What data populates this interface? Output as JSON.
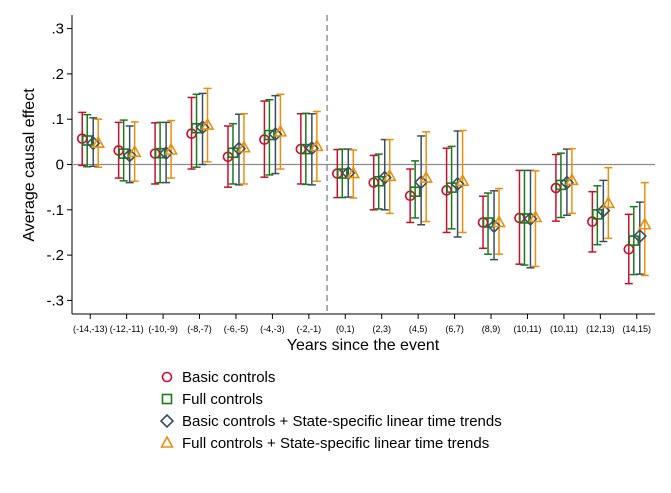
{
  "chart_data": {
    "type": "scatter",
    "subtype": "point-estimates-with-confidence-intervals",
    "xlabel": "Years since the event",
    "ylabel": "Average causal effect",
    "ylim": [
      -0.33,
      0.33
    ],
    "yticks": [
      0.3,
      0.2,
      0.1,
      0,
      -0.1,
      -0.2,
      -0.3
    ],
    "ytick_labels": [
      ".3",
      ".2",
      ".1",
      "0",
      "-.1",
      "-.2",
      "-.3"
    ],
    "categories": [
      "(-14,-13)",
      "(-12,-11)",
      "(-10,-9)",
      "(-8,-7)",
      "(-6,-5)",
      "(-4,-3)",
      "(-2,-1)",
      "(0,1)",
      "(2,3)",
      "(4,5)",
      "(6,7)",
      "(8,9)",
      "(10,11)",
      "(10,11)",
      "(12,13)",
      "(14,15)"
    ],
    "event_line": {
      "after_index": 6,
      "style": "dashed"
    },
    "zero_line": true,
    "grid": false,
    "legend_position": "bottom",
    "series": [
      {
        "name": "Basic controls",
        "marker": "circle",
        "color": "#c8102e",
        "estimates": [
          0.057,
          0.031,
          0.024,
          0.068,
          0.017,
          0.055,
          0.034,
          -0.02,
          -0.04,
          -0.069,
          -0.057,
          -0.128,
          -0.118,
          -0.052,
          -0.126,
          -0.187
        ],
        "ci_low": [
          -0.002,
          -0.03,
          -0.043,
          -0.01,
          -0.05,
          -0.028,
          -0.043,
          -0.073,
          -0.1,
          -0.128,
          -0.15,
          -0.185,
          -0.22,
          -0.125,
          -0.193,
          -0.263
        ],
        "ci_high": [
          0.115,
          0.093,
          0.092,
          0.148,
          0.085,
          0.14,
          0.112,
          0.033,
          0.02,
          -0.01,
          0.036,
          -0.07,
          -0.013,
          0.022,
          -0.06,
          -0.11
        ]
      },
      {
        "name": "Full controls",
        "marker": "square",
        "color": "#1a7a1a",
        "estimates": [
          0.053,
          0.024,
          0.025,
          0.08,
          0.026,
          0.065,
          0.034,
          -0.02,
          -0.037,
          -0.06,
          -0.051,
          -0.128,
          -0.119,
          -0.045,
          -0.11,
          -0.168
        ],
        "ci_low": [
          -0.005,
          -0.036,
          -0.04,
          -0.006,
          -0.043,
          -0.023,
          -0.044,
          -0.073,
          -0.098,
          -0.118,
          -0.142,
          -0.198,
          -0.222,
          -0.117,
          -0.177,
          -0.243
        ],
        "ci_high": [
          0.11,
          0.098,
          0.093,
          0.155,
          0.09,
          0.143,
          0.113,
          0.034,
          0.023,
          0.008,
          0.04,
          -0.063,
          -0.013,
          0.025,
          -0.047,
          -0.093
        ]
      },
      {
        "name": "Basic controls  + State-specific linear time trends",
        "marker": "diamond",
        "color": "#3a4f63",
        "estimates": [
          0.047,
          0.02,
          0.025,
          0.082,
          0.035,
          0.067,
          0.036,
          -0.019,
          -0.029,
          -0.039,
          -0.043,
          -0.136,
          -0.12,
          -0.04,
          -0.102,
          -0.158
        ],
        "ci_low": [
          -0.004,
          -0.04,
          -0.04,
          0.0,
          -0.045,
          -0.02,
          -0.045,
          -0.072,
          -0.1,
          -0.133,
          -0.16,
          -0.21,
          -0.228,
          -0.112,
          -0.17,
          -0.242
        ],
        "ci_high": [
          0.103,
          0.085,
          0.093,
          0.157,
          0.111,
          0.152,
          0.112,
          0.034,
          0.055,
          0.063,
          0.074,
          -0.058,
          -0.013,
          0.034,
          -0.035,
          -0.083
        ]
      },
      {
        "name": "Full controls + State-specific linear time trends",
        "marker": "triangle",
        "color": "#e8900c",
        "estimates": [
          0.047,
          0.027,
          0.032,
          0.087,
          0.037,
          0.072,
          0.04,
          -0.02,
          -0.026,
          -0.03,
          -0.037,
          -0.128,
          -0.117,
          -0.035,
          -0.086,
          -0.133
        ],
        "ci_low": [
          -0.006,
          -0.037,
          -0.03,
          0.006,
          -0.043,
          -0.01,
          -0.037,
          -0.074,
          -0.108,
          -0.126,
          -0.15,
          -0.198,
          -0.225,
          -0.108,
          -0.163,
          -0.245
        ],
        "ci_high": [
          0.1,
          0.094,
          0.097,
          0.168,
          0.112,
          0.155,
          0.117,
          0.032,
          0.055,
          0.072,
          0.075,
          -0.053,
          -0.014,
          0.035,
          -0.007,
          -0.04
        ]
      }
    ]
  }
}
